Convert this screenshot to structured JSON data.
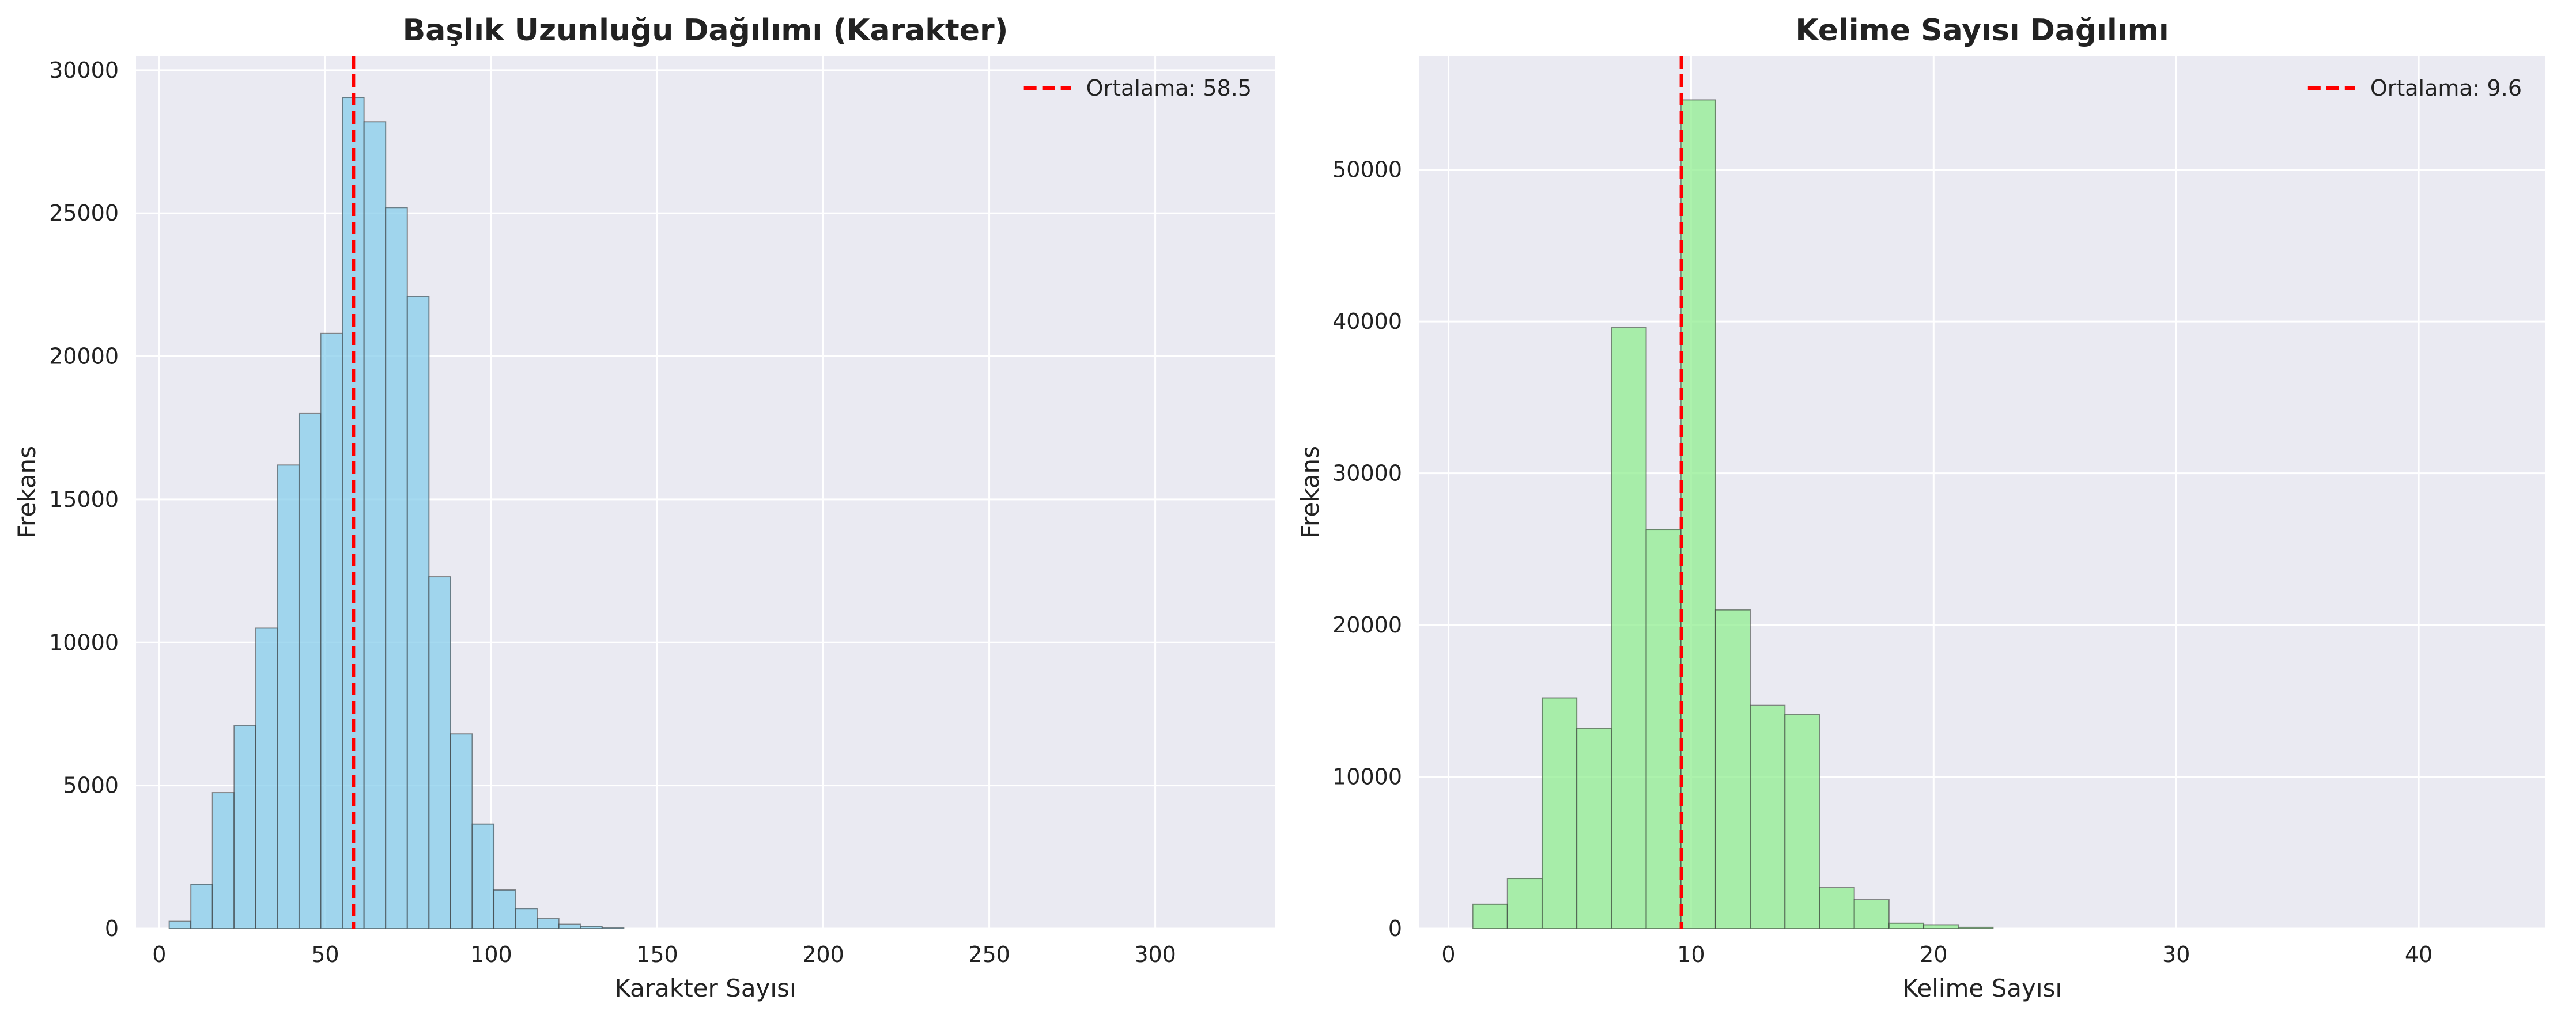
{
  "chart_data": [
    {
      "type": "bar",
      "title": "Başlık Uzunluğu Dağılımı (Karakter)",
      "xlabel": "Karakter Sayısı",
      "ylabel": "Frekans",
      "xlim": [
        -7,
        336
      ],
      "ylim": [
        0,
        30500
      ],
      "xticks": [
        0,
        50,
        100,
        150,
        200,
        250,
        300
      ],
      "yticks": [
        0,
        5000,
        10000,
        15000,
        20000,
        25000,
        30000
      ],
      "bin_width": 6.52,
      "bins_start": [
        3,
        9.52,
        16.04,
        22.56,
        29.08,
        35.6,
        42.12,
        48.64,
        55.16,
        61.68,
        68.2,
        74.72,
        81.24,
        87.76,
        94.28,
        100.8,
        107.32,
        113.84,
        120.36,
        126.88,
        133.4
      ],
      "values": [
        250,
        1550,
        4750,
        7100,
        10500,
        16200,
        18000,
        20800,
        29050,
        28200,
        25200,
        22100,
        12300,
        6800,
        3650,
        1350,
        700,
        350,
        150,
        80,
        30
      ],
      "mean_line": {
        "x": 58.5,
        "label": "Ortalama: 58.5"
      },
      "bar_color": "#87CEEB",
      "mean_color": "#FF0000",
      "grid": true,
      "legend_position": "top-right"
    },
    {
      "type": "bar",
      "title": "Kelime Sayısı Dağılımı",
      "xlabel": "Kelime Sayısı",
      "ylabel": "Frekans",
      "xlim": [
        -1.2,
        45.2
      ],
      "ylim": [
        0,
        57500
      ],
      "xticks": [
        0,
        10,
        20,
        30,
        40
      ],
      "yticks": [
        0,
        10000,
        20000,
        30000,
        40000,
        50000
      ],
      "bin_width": 1.43,
      "bins_start": [
        1,
        2.43,
        3.86,
        5.29,
        6.72,
        8.15,
        9.58,
        11.01,
        12.44,
        13.87,
        15.3,
        16.73,
        18.16,
        19.59,
        21.02
      ],
      "values": [
        1600,
        3300,
        15200,
        13200,
        39600,
        26300,
        54600,
        21000,
        14700,
        14100,
        2700,
        1900,
        350,
        250,
        80
      ],
      "mean_line": {
        "x": 9.6,
        "label": "Ortalama: 9.6"
      },
      "bar_color": "#90EE90",
      "mean_color": "#FF0000",
      "grid": true,
      "legend_position": "top-right"
    }
  ]
}
